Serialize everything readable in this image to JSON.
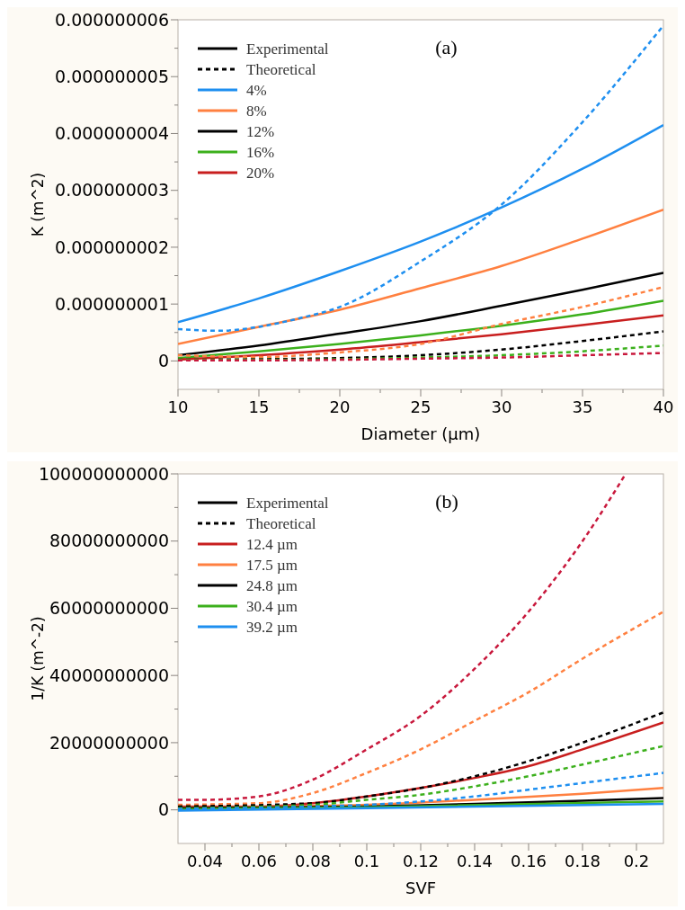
{
  "chart_data": [
    {
      "type": "line",
      "title": "(a)",
      "xlabel": "Diameter (µm)",
      "ylabel": "K (m^2)",
      "xlim": [
        10,
        40
      ],
      "xticks": [
        10,
        15,
        20,
        25,
        30,
        35,
        40
      ],
      "ylim": [
        -5e-10,
        6e-09
      ],
      "yticks": [
        0,
        {
          "value": 1e-09,
          "label": "0.000000001"
        },
        {
          "value": 2e-09,
          "label": "0.000000002"
        },
        {
          "value": 3e-09,
          "label": "0.000000003"
        },
        {
          "value": 4e-09,
          "label": "0.000000004"
        },
        {
          "value": 5e-09,
          "label": "0.000000005"
        },
        {
          "value": 6e-09,
          "label": "0.000000006"
        }
      ],
      "legend": "top left",
      "grid": false,
      "annotations": [
        "Experimental",
        "Theoretical"
      ],
      "series": [
        {
          "name": "4%",
          "color": "#1e8ff0",
          "line_style": "solid",
          "x": [
            10,
            15,
            20,
            25,
            30,
            35,
            40
          ],
          "values": [
            6.8e-10,
            1.1e-09,
            1.58e-09,
            2.1e-09,
            2.7e-09,
            3.38e-09,
            4.15e-09
          ]
        },
        {
          "name": "8%",
          "color": "#ff8040",
          "line_style": "solid",
          "x": [
            10,
            15,
            20,
            25,
            30,
            35,
            40
          ],
          "values": [
            3e-10,
            6e-10,
            9e-10,
            1.28e-09,
            1.67e-09,
            2.15e-09,
            2.66e-09
          ]
        },
        {
          "name": "12%",
          "color": "#000000",
          "line_style": "solid",
          "x": [
            10,
            15,
            20,
            25,
            30,
            35,
            40
          ],
          "values": [
            1e-10,
            2.7e-10,
            4.8e-10,
            7e-10,
            9.7e-10,
            1.25e-09,
            1.55e-09
          ]
        },
        {
          "name": "16%",
          "color": "#3cb01c",
          "line_style": "solid",
          "x": [
            10,
            15,
            20,
            25,
            30,
            35,
            40
          ],
          "values": [
            5e-11,
            1.7e-10,
            3e-10,
            4.5e-10,
            6.2e-10,
            8.2e-10,
            1.06e-09
          ]
        },
        {
          "name": "20%",
          "color": "#c81e1e",
          "line_style": "solid",
          "x": [
            10,
            15,
            20,
            25,
            30,
            35,
            40
          ],
          "values": [
            2e-11,
            1e-10,
            2e-10,
            3.3e-10,
            4.7e-10,
            6.3e-10,
            8e-10
          ]
        },
        {
          "color": "#1e8ff0",
          "line_style": "dotted",
          "x": [
            10,
            12.5,
            15,
            17.5,
            20,
            25,
            30,
            35,
            40
          ],
          "values": [
            5.6e-10,
            5.3e-10,
            6e-10,
            7.5e-10,
            9.5e-10,
            1.75e-09,
            2.75e-09,
            4.2e-09,
            5.9e-09
          ]
        },
        {
          "color": "#ff8040",
          "line_style": "dotted",
          "x": [
            10,
            15,
            20,
            25,
            30,
            35,
            40
          ],
          "values": [
            1e-10,
            7e-11,
            1.5e-10,
            3e-10,
            6.5e-10,
            9.5e-10,
            1.3e-09
          ]
        },
        {
          "color": "#000000",
          "line_style": "dotted",
          "x": [
            10,
            15,
            20,
            25,
            30,
            35,
            40
          ],
          "values": [
            2e-11,
            3e-11,
            5e-11,
            1e-10,
            2e-10,
            3.5e-10,
            5.2e-10
          ]
        },
        {
          "color": "#3cb01c",
          "line_style": "dotted",
          "x": [
            10,
            15,
            20,
            25,
            30,
            35,
            40
          ],
          "values": [
            2e-11,
            2e-11,
            3e-11,
            6e-11,
            1e-10,
            1.7e-10,
            2.7e-10
          ]
        },
        {
          "color": "#c8183c",
          "line_style": "dotted",
          "x": [
            10,
            15,
            20,
            25,
            30,
            35,
            40
          ],
          "values": [
            1e-11,
            1e-11,
            2e-11,
            4e-11,
            6e-11,
            1e-10,
            1.4e-10
          ]
        }
      ]
    },
    {
      "type": "line",
      "title": "(b)",
      "xlabel": "SVF",
      "ylabel": "1/K (m^-2)",
      "xlim": [
        0.03,
        0.21
      ],
      "xticks": [
        0.04,
        0.06,
        0.08,
        0.1,
        0.12,
        0.14,
        0.16,
        0.18,
        0.2
      ],
      "ylim": [
        -10000000000,
        100000000000
      ],
      "yticks": [
        0,
        20000000000,
        40000000000,
        60000000000,
        80000000000,
        100000000000
      ],
      "legend": "top left",
      "grid": false,
      "annotations": [
        "Experimental",
        "Theoretical"
      ],
      "series": [
        {
          "name": "12.4 µm",
          "color": "#c81e1e",
          "line_style": "solid",
          "x": [
            0.03,
            0.06,
            0.08,
            0.1,
            0.12,
            0.14,
            0.16,
            0.18,
            0.21
          ],
          "values": [
            1000000000.0,
            1000000000.0,
            2000000000.0,
            4000000000.0,
            6500000000.0,
            9500000000.0,
            13000000000.0,
            18000000000.0,
            26000000000.0
          ]
        },
        {
          "name": "17.5 µm",
          "color": "#ff8040",
          "line_style": "solid",
          "x": [
            0.03,
            0.1,
            0.14,
            0.18,
            0.21
          ],
          "values": [
            700000000.0,
            1500000000.0,
            3000000000.0,
            4800000000.0,
            6500000000.0
          ]
        },
        {
          "name": "24.8 µm",
          "color": "#000000",
          "line_style": "solid",
          "x": [
            0.03,
            0.1,
            0.14,
            0.18,
            0.21
          ],
          "values": [
            500000000.0,
            1000000000.0,
            1800000000.0,
            2700000000.0,
            3500000000.0
          ]
        },
        {
          "name": "30.4 µm",
          "color": "#3cb01c",
          "line_style": "solid",
          "x": [
            0.03,
            0.1,
            0.21
          ],
          "values": [
            200000000.0,
            800000000.0,
            2500000000.0
          ]
        },
        {
          "name": "39.2 µm",
          "color": "#1e8ff0",
          "line_style": "solid",
          "x": [
            0.03,
            0.1,
            0.21
          ],
          "values": [
            -200000000.0,
            500000000.0,
            1800000000.0
          ]
        },
        {
          "color": "#c8183c",
          "line_style": "dotted",
          "x": [
            0.03,
            0.04,
            0.06,
            0.08,
            0.1,
            0.12,
            0.14,
            0.16,
            0.18,
            0.196
          ],
          "values": [
            3000000000.0,
            3000000000.0,
            4000000000.0,
            9000000000.0,
            18000000000.0,
            28000000000.0,
            42000000000.0,
            59000000000.0,
            80000000000.0,
            100000000000.0
          ]
        },
        {
          "color": "#ff8040",
          "line_style": "dotted",
          "x": [
            0.03,
            0.06,
            0.08,
            0.1,
            0.12,
            0.14,
            0.16,
            0.18,
            0.21
          ],
          "values": [
            1500000000.0,
            2000000000.0,
            5000000000.0,
            11000000000.0,
            18000000000.0,
            26500000000.0,
            35000000000.0,
            45000000000.0,
            59000000000.0
          ]
        },
        {
          "color": "#000000",
          "line_style": "dotted",
          "x": [
            0.03,
            0.08,
            0.1,
            0.12,
            0.14,
            0.16,
            0.18,
            0.21
          ],
          "values": [
            1000000000.0,
            2000000000.0,
            4000000000.0,
            6500000000.0,
            10000000000.0,
            14500000000.0,
            20000000000.0,
            29000000000.0
          ]
        },
        {
          "color": "#3cb01c",
          "line_style": "dotted",
          "x": [
            0.03,
            0.08,
            0.1,
            0.12,
            0.14,
            0.16,
            0.18,
            0.21
          ],
          "values": [
            500000000.0,
            1500000000.0,
            3000000000.0,
            4500000000.0,
            7000000000.0,
            10000000000.0,
            13500000000.0,
            19000000000.0
          ]
        },
        {
          "color": "#1e8ff0",
          "line_style": "dotted",
          "x": [
            0.03,
            0.08,
            0.1,
            0.12,
            0.14,
            0.16,
            0.18,
            0.21
          ],
          "values": [
            300000000.0,
            1000000000.0,
            1500000000.0,
            2500000000.0,
            4000000000.0,
            6000000000.0,
            8000000000.0,
            11000000000.0
          ]
        }
      ]
    }
  ]
}
